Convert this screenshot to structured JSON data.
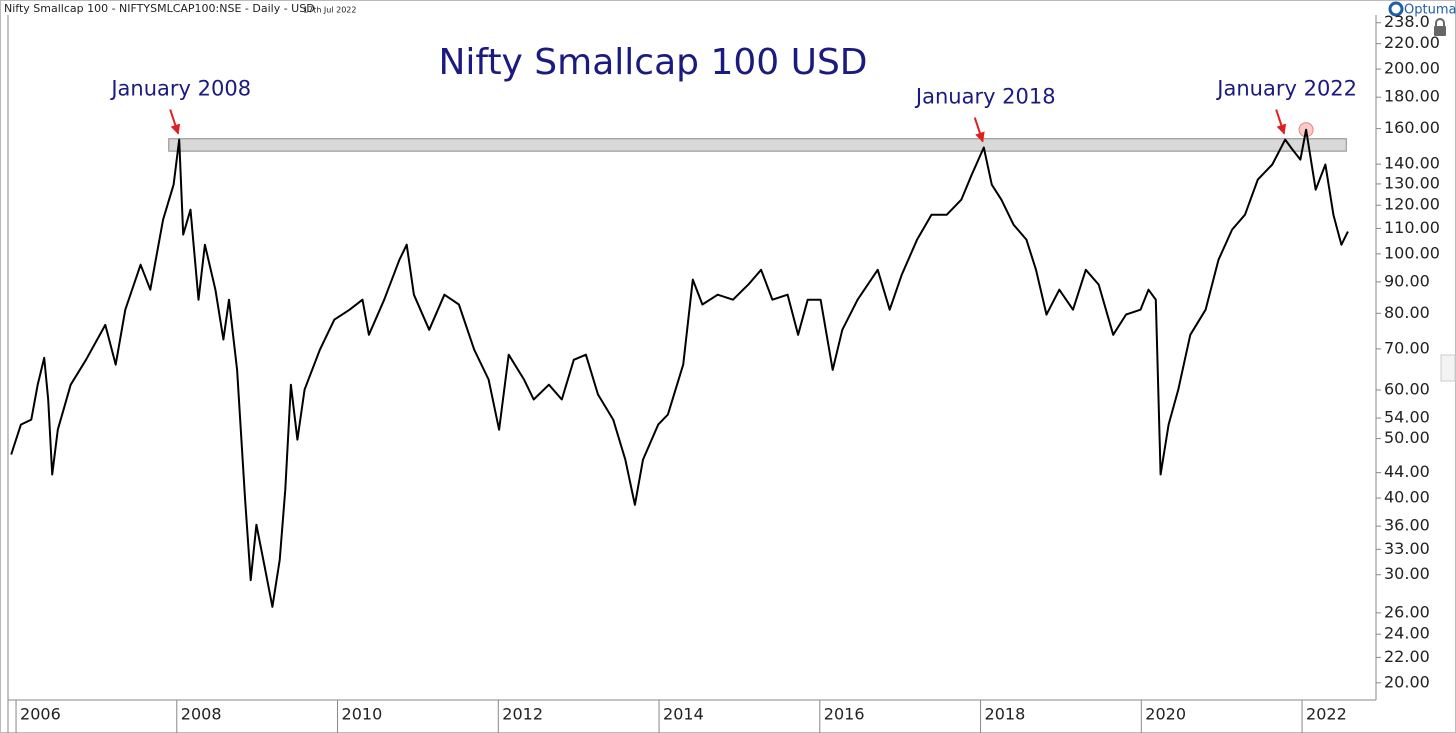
{
  "header": {
    "title": "Nifty Smallcap 100 - NIFTYSMLCAP100:NSE - Daily - USD",
    "date": "17th Jul 2022",
    "brand": "Optuma"
  },
  "chart_data": {
    "type": "line",
    "title": "Nifty Smallcap 100 USD",
    "log_scale": true,
    "color": "#000000",
    "xlim": [
      2005.9,
      2022.92
    ],
    "xticks": [
      2006,
      2008,
      2010,
      2012,
      2014,
      2016,
      2018,
      2020,
      2022
    ],
    "ylim": [
      18.75,
      245
    ],
    "yticks": [
      {
        "value": 238,
        "label": "238.0"
      },
      {
        "value": 220,
        "label": "220.00"
      },
      {
        "value": 200,
        "label": "200.00"
      },
      {
        "value": 180,
        "label": "180.00"
      },
      {
        "value": 160,
        "label": "160.00"
      },
      {
        "value": 140,
        "label": "140.00"
      },
      {
        "value": 130,
        "label": "130.00"
      },
      {
        "value": 120,
        "label": "120.00"
      },
      {
        "value": 110,
        "label": "110.00"
      },
      {
        "value": 100,
        "label": "100.00"
      },
      {
        "value": 90,
        "label": "90.00"
      },
      {
        "value": 80,
        "label": "80.00"
      },
      {
        "value": 70,
        "label": "70.00"
      },
      {
        "value": 60,
        "label": "60.00"
      },
      {
        "value": 54,
        "label": "54.00"
      },
      {
        "value": 50,
        "label": "50.00"
      },
      {
        "value": 44,
        "label": "44.00"
      },
      {
        "value": 40,
        "label": "40.00"
      },
      {
        "value": 36,
        "label": "36.00"
      },
      {
        "value": 33,
        "label": "33.00"
      },
      {
        "value": 30,
        "label": "30.00"
      },
      {
        "value": 26,
        "label": "26.00"
      },
      {
        "value": 24,
        "label": "24.00"
      },
      {
        "value": 22,
        "label": "22.00"
      },
      {
        "value": 20,
        "label": "20.00"
      }
    ],
    "x": [
      2005.94,
      2006.06,
      2006.19,
      2006.27,
      2006.35,
      2006.4,
      2006.45,
      2006.52,
      2006.59,
      2006.68,
      2006.87,
      2007.11,
      2007.24,
      2007.36,
      2007.55,
      2007.67,
      2007.83,
      2007.96,
      2008.03,
      2008.08,
      2008.17,
      2008.27,
      2008.35,
      2008.48,
      2008.58,
      2008.65,
      2008.75,
      2008.85,
      2008.92,
      2008.99,
      2009.1,
      2009.19,
      2009.28,
      2009.35,
      2009.42,
      2009.5,
      2009.59,
      2009.78,
      2009.96,
      2010.15,
      2010.31,
      2010.39,
      2010.58,
      2010.77,
      2010.86,
      2010.95,
      2011.14,
      2011.33,
      2011.51,
      2011.7,
      2011.88,
      2012.01,
      2012.13,
      2012.32,
      2012.44,
      2012.63,
      2012.79,
      2012.94,
      2013.09,
      2013.24,
      2013.43,
      2013.58,
      2013.7,
      2013.8,
      2013.99,
      2014.11,
      2014.3,
      2014.42,
      2014.54,
      2014.73,
      2014.92,
      2015.11,
      2015.27,
      2015.41,
      2015.6,
      2015.73,
      2015.85,
      2016.01,
      2016.16,
      2016.28,
      2016.47,
      2016.72,
      2016.87,
      2017.02,
      2017.21,
      2017.39,
      2017.58,
      2017.76,
      2017.89,
      2018.04,
      2018.14,
      2018.26,
      2018.41,
      2018.57,
      2018.69,
      2018.82,
      2018.98,
      2019.15,
      2019.31,
      2019.47,
      2019.65,
      2019.81,
      2019.99,
      2020.09,
      2020.18,
      2020.24,
      2020.34,
      2020.46,
      2020.61,
      2020.8,
      2020.96,
      2021.13,
      2021.29,
      2021.45,
      2021.63,
      2021.79,
      2021.88,
      2021.98,
      2022.05,
      2022.17,
      2022.29,
      2022.39,
      2022.49,
      2022.57
    ],
    "values": [
      47.1,
      52.7,
      53.7,
      61.2,
      67.7,
      57.9,
      43.7,
      51.7,
      55.7,
      61.2,
      67.2,
      76.6,
      66.0,
      81.1,
      96.0,
      87.4,
      113.7,
      129.6,
      153.5,
      107.5,
      118.0,
      84.2,
      103.5,
      87.4,
      72.5,
      84.2,
      64.7,
      39.8,
      29.4,
      36.2,
      30.6,
      26.6,
      31.7,
      41.3,
      61.2,
      49.8,
      60.1,
      69.8,
      78.1,
      81.1,
      84.2,
      73.8,
      84.2,
      97.8,
      103.5,
      85.8,
      75.2,
      85.8,
      82.7,
      69.8,
      62.4,
      51.7,
      68.5,
      62.4,
      57.9,
      61.2,
      57.9,
      67.2,
      68.5,
      59.0,
      53.7,
      46.2,
      39.0,
      46.2,
      52.7,
      54.7,
      66.0,
      90.8,
      82.7,
      85.8,
      84.2,
      89.1,
      94.2,
      84.2,
      85.8,
      73.8,
      84.2,
      84.2,
      64.7,
      75.2,
      84.2,
      94.2,
      81.1,
      92.5,
      105.5,
      115.8,
      115.8,
      122.5,
      134.5,
      149.0,
      129.6,
      122.5,
      111.6,
      105.5,
      94.2,
      79.6,
      87.4,
      81.1,
      94.2,
      89.1,
      73.8,
      79.6,
      81.1,
      87.4,
      84.2,
      43.7,
      52.7,
      60.1,
      73.8,
      81.1,
      97.8,
      109.5,
      115.8,
      132.1,
      139.8,
      153.5,
      147.9,
      142.4,
      159.3,
      127.2,
      139.8,
      115.8,
      103.5,
      108.7
    ],
    "band": {
      "x": [
        2007.9,
        2022.55
      ],
      "y": [
        147,
        154
      ],
      "color": "#d9d9d9"
    },
    "highlight": {
      "x": 2022.05,
      "y": 159.3,
      "color": "#f08080"
    },
    "annotations": [
      {
        "text": "January 2008",
        "x": 2008.03,
        "y": 153.5
      },
      {
        "text": "January 2018",
        "x": 2018.04,
        "y": 149.0
      },
      {
        "text": "January 2022",
        "x": 2021.79,
        "y": 153.5
      }
    ],
    "annotation_color": "#1a1a80",
    "arrow_color": "#e02020"
  }
}
